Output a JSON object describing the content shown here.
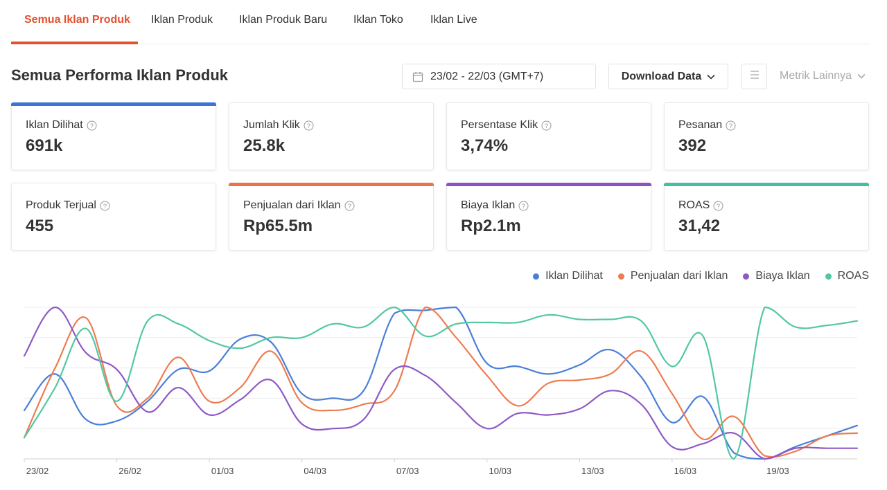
{
  "tabs": [
    {
      "label": "Semua Iklan Produk",
      "active": true
    },
    {
      "label": "Iklan Produk",
      "active": false
    },
    {
      "label": "Iklan Produk Baru",
      "active": false
    },
    {
      "label": "Iklan Toko",
      "active": false
    },
    {
      "label": "Iklan Live",
      "active": false
    }
  ],
  "header": {
    "title": "Semua Performa Iklan Produk",
    "date_range": "23/02 - 22/03 (GMT+7)",
    "download_label": "Download Data",
    "metrics_more_label": "Metrik Lainnya"
  },
  "metrics": [
    {
      "label": "Iklan Dilihat",
      "value": "691k",
      "accent": "#3d73d8"
    },
    {
      "label": "Jumlah Klik",
      "value": "25.8k",
      "accent": null
    },
    {
      "label": "Persentase Klik",
      "value": "3,74%",
      "accent": null
    },
    {
      "label": "Pesanan",
      "value": "392",
      "accent": null
    },
    {
      "label": "Produk Terjual",
      "value": "455",
      "accent": null
    },
    {
      "label": "Penjualan dari Iklan",
      "value": "Rp65.5m",
      "accent": "#e8764a"
    },
    {
      "label": "Biaya Iklan",
      "value": "Rp2.1m",
      "accent": "#8a52c4"
    },
    {
      "label": "ROAS",
      "value": "31,42",
      "accent": "#45bf9e"
    }
  ],
  "colors": {
    "brand": "#e4502d",
    "iklan_dilihat": "#4a7fd9",
    "penjualan": "#ee7c50",
    "biaya": "#8f59c4",
    "roas": "#52c7a3"
  },
  "chart_data": {
    "type": "line",
    "x_tick_labels": [
      "23/02",
      "26/02",
      "01/03",
      "04/03",
      "07/03",
      "10/03",
      "13/03",
      "16/03",
      "19/03"
    ],
    "x": [
      "23/02",
      "24/02",
      "25/02",
      "26/02",
      "27/02",
      "28/02",
      "01/03",
      "02/03",
      "03/03",
      "04/03",
      "05/03",
      "06/03",
      "07/03",
      "08/03",
      "09/03",
      "10/03",
      "11/03",
      "12/03",
      "13/03",
      "14/03",
      "15/03",
      "16/03",
      "17/03",
      "18/03",
      "19/03",
      "20/03",
      "21/03",
      "22/03"
    ],
    "ylim": [
      0,
      100
    ],
    "grid": true,
    "y_axis_labels_visible": false,
    "legend_position": "top-right",
    "series": [
      {
        "name": "Iklan Dilihat",
        "color": "#4a7fd9",
        "values": [
          32,
          56,
          26,
          25,
          38,
          59,
          58,
          79,
          77,
          43,
          40,
          45,
          96,
          98,
          100,
          63,
          61,
          56,
          62,
          72,
          54,
          24,
          41,
          4,
          0,
          8,
          15,
          22
        ]
      },
      {
        "name": "Penjualan dari Iklan",
        "color": "#ee7c50",
        "values": [
          14,
          60,
          93,
          35,
          40,
          67,
          38,
          47,
          71,
          37,
          32,
          36,
          45,
          100,
          80,
          55,
          35,
          50,
          52,
          56,
          71,
          43,
          13,
          28,
          2,
          5,
          15,
          17
        ]
      },
      {
        "name": "Biaya Iklan",
        "color": "#8f59c4",
        "values": [
          68,
          100,
          70,
          59,
          31,
          47,
          29,
          39,
          52,
          23,
          20,
          26,
          59,
          55,
          37,
          20,
          30,
          29,
          33,
          45,
          36,
          8,
          10,
          17,
          0,
          7,
          7,
          7
        ]
      },
      {
        "name": "ROAS",
        "color": "#52c7a3",
        "values": [
          14,
          47,
          86,
          38,
          91,
          89,
          78,
          73,
          80,
          80,
          89,
          87,
          100,
          81,
          89,
          90,
          90,
          95,
          92,
          92,
          91,
          61,
          81,
          0,
          100,
          87,
          88,
          91
        ]
      }
    ]
  }
}
